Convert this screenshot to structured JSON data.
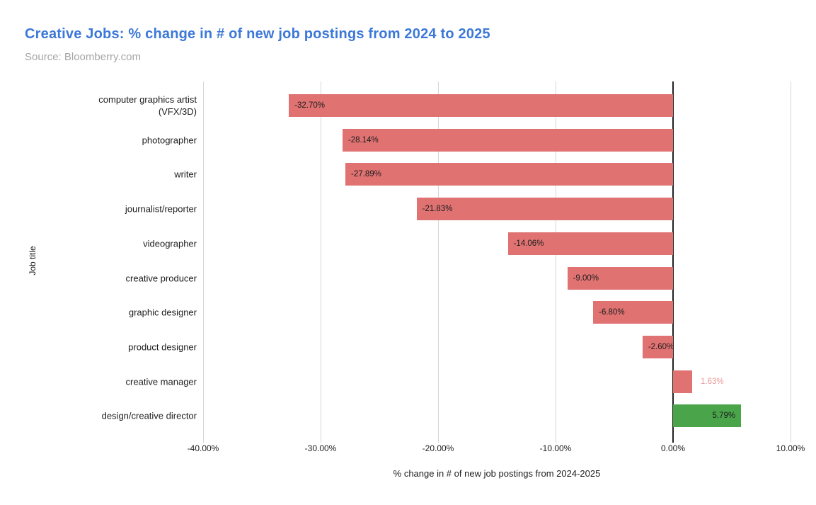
{
  "header": {
    "title": "Creative Jobs: % change in # of new job postings from 2024 to 2025",
    "source": "Source: Bloomberry.com"
  },
  "chart_data": {
    "type": "bar",
    "orientation": "horizontal",
    "title": "Creative Jobs: % change in # of new job postings from 2024 to 2025",
    "xlabel": "% change in # of new job postings from 2024-2025",
    "ylabel": "Job title",
    "xlim": [
      -40,
      10
    ],
    "grid": "vertical-only",
    "legend": "none",
    "x_ticks": [
      {
        "value": -40,
        "label": "-40.00%"
      },
      {
        "value": -30,
        "label": "-30.00%"
      },
      {
        "value": -20,
        "label": "-20.00%"
      },
      {
        "value": -10,
        "label": "-10.00%"
      },
      {
        "value": 0,
        "label": "0.00%"
      },
      {
        "value": 10,
        "label": "10.00%"
      }
    ],
    "categories": [
      "computer graphics artist\n(VFX/3D)",
      "photographer",
      "writer",
      "journalist/reporter",
      "videographer",
      "creative producer",
      "graphic designer",
      "product designer",
      "creative manager",
      "design/creative director"
    ],
    "values": [
      -32.7,
      -28.14,
      -27.89,
      -21.83,
      -14.06,
      -9.0,
      -6.8,
      -2.6,
      1.63,
      5.79
    ],
    "labels": [
      "-32.70%",
      "-28.14%",
      "-27.89%",
      "-21.83%",
      "-14.06%",
      "-9.00%",
      "-6.80%",
      "-2.60%",
      "1.63%",
      "5.79%"
    ],
    "bar_colors": [
      "#e07272",
      "#e07272",
      "#e07272",
      "#e07272",
      "#e07272",
      "#e07272",
      "#e07272",
      "#e07272",
      "#e07272",
      "#4aa54a"
    ],
    "label_positions": [
      "inside-start",
      "inside-start",
      "inside-start",
      "inside-start",
      "inside-start",
      "inside-start",
      "inside-start",
      "inside-start",
      "outside-end",
      "inside-end"
    ],
    "label_colors": [
      "#1c1c1c",
      "#1c1c1c",
      "#1c1c1c",
      "#1c1c1c",
      "#1c1c1c",
      "#1c1c1c",
      "#1c1c1c",
      "#1c1c1c",
      "#ea9999",
      "#1c1c1c"
    ],
    "colors": {
      "negative_bar": "#e07272",
      "positive_highlight_bar": "#4aa54a",
      "outside_label": "#ea9999",
      "zero_line": "#212121",
      "gridline": "#d6d6d6",
      "title": "#3c78d8",
      "source_text": "#a5a5a5"
    }
  }
}
